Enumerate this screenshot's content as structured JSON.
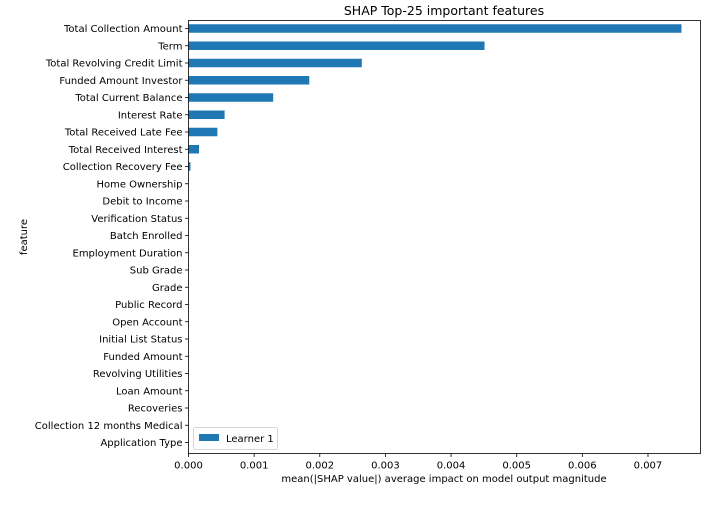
{
  "chart_data": {
    "type": "bar",
    "orientation": "horizontal",
    "title": "SHAP Top-25 important features",
    "xlabel": "mean(|SHAP value|) average impact on model output magnitude",
    "ylabel": "feature",
    "xlim": [
      0,
      0.0078
    ],
    "xticks": [
      0.0,
      0.001,
      0.002,
      0.003,
      0.004,
      0.005,
      0.006,
      0.007
    ],
    "xtick_labels": [
      "0.000",
      "0.001",
      "0.002",
      "0.003",
      "0.004",
      "0.005",
      "0.006",
      "0.007"
    ],
    "grid": false,
    "legend_position": "lower-left",
    "series": [
      {
        "name": "Learner 1",
        "color": "#1f77b4",
        "values": [
          0.00751,
          0.00451,
          0.00264,
          0.00184,
          0.00129,
          0.00055,
          0.00044,
          0.00016,
          3e-05,
          0,
          0,
          0,
          0,
          0,
          0,
          0,
          0,
          0,
          0,
          0,
          0,
          0,
          0,
          0,
          0
        ]
      }
    ],
    "categories": [
      "Total Collection Amount",
      "Term",
      "Total Revolving Credit Limit",
      "Funded Amount Investor",
      "Total Current Balance",
      "Interest Rate",
      "Total Received Late Fee",
      "Total Received Interest",
      "Collection Recovery Fee",
      "Home Ownership",
      "Debit to Income",
      "Verification Status",
      "Batch Enrolled",
      "Employment Duration",
      "Sub Grade",
      "Grade",
      "Public Record",
      "Open Account",
      "Initial List Status",
      "Funded Amount",
      "Revolving Utilities",
      "Loan Amount",
      "Recoveries",
      "Collection 12 months Medical",
      "Application Type"
    ]
  }
}
